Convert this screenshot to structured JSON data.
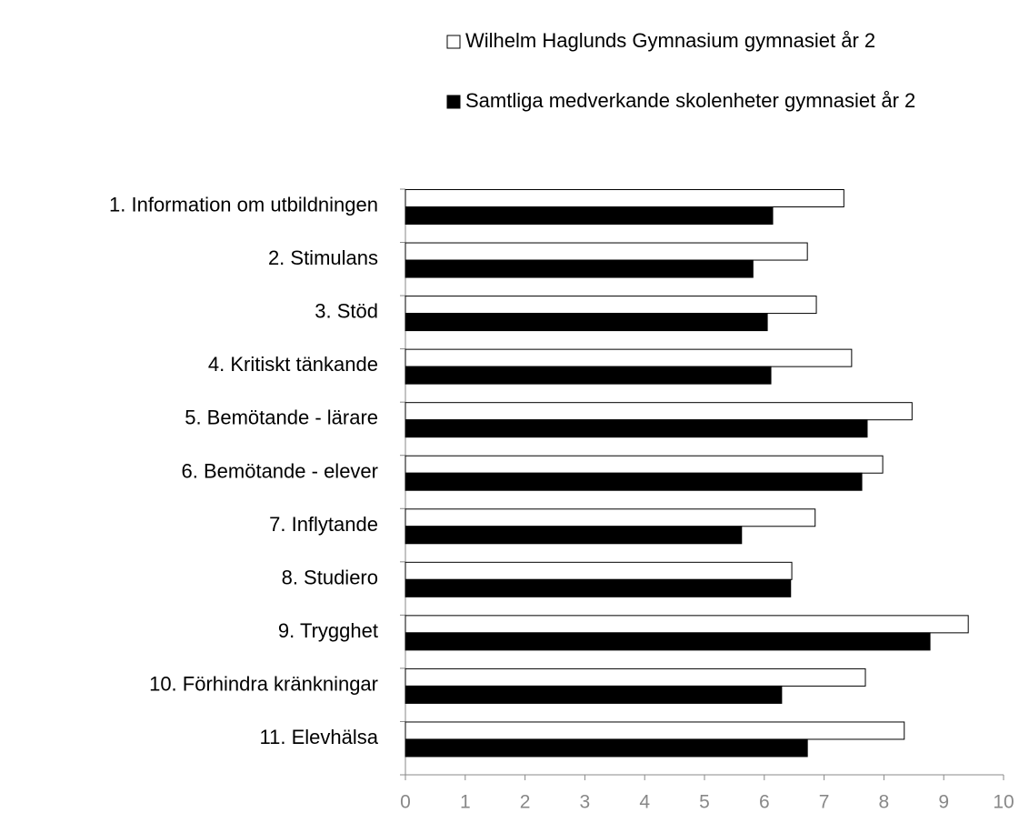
{
  "chart_data": {
    "type": "barh",
    "categories": [
      "1. Information om utbildningen",
      "2. Stimulans",
      "3. Stöd",
      "4. Kritiskt tänkande",
      "5. Bemötande - lärare",
      "6. Bemötande - elever",
      "7. Inflytande",
      "8. Studiero",
      "9. Trygghet",
      "10. Förhindra kränkningar",
      "11. Elevhälsa"
    ],
    "series": [
      {
        "name": "Wilhelm Haglunds Gymnasium gymnasiet år 2",
        "color": "#ffffff",
        "values": [
          7.33,
          6.72,
          6.87,
          7.46,
          8.47,
          7.98,
          6.85,
          6.46,
          9.41,
          7.69,
          8.34
        ]
      },
      {
        "name": "Samtliga medverkande skolenheter gymnasiet år 2",
        "color": "#000000",
        "values": [
          6.14,
          5.81,
          6.05,
          6.11,
          7.72,
          7.63,
          5.62,
          6.44,
          8.77,
          6.29,
          6.72
        ]
      }
    ],
    "xlim": [
      0,
      10
    ],
    "xticks": [
      0,
      1,
      2,
      3,
      4,
      5,
      6,
      7,
      8,
      9,
      10
    ],
    "legend": "top-right"
  }
}
